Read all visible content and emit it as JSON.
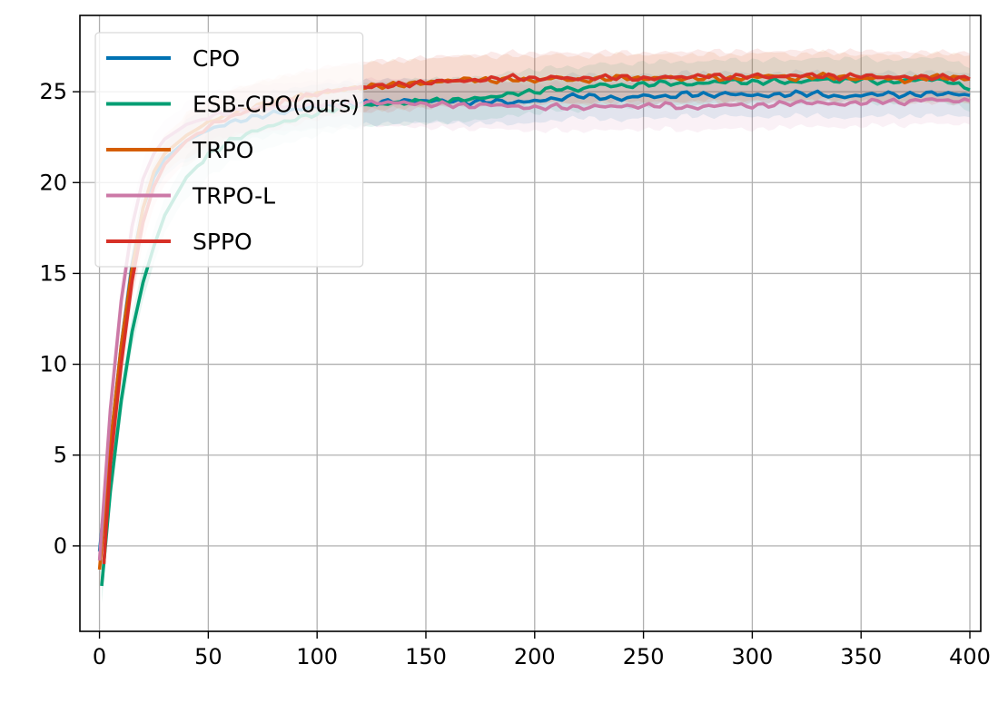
{
  "chart_data": {
    "type": "line",
    "title": "",
    "xlabel": "",
    "ylabel": "",
    "xlim": [
      -9,
      405
    ],
    "ylim": [
      -4.7,
      29.2
    ],
    "xticks": [
      0,
      50,
      100,
      150,
      200,
      250,
      300,
      350,
      400
    ],
    "yticks": [
      0,
      5,
      10,
      15,
      20,
      25
    ],
    "grid": true,
    "legend_position": "top-left",
    "series": [
      {
        "name": "CPO",
        "color": "#0072b2",
        "band": 1.2,
        "x": [
          0,
          5,
          10,
          15,
          20,
          25,
          30,
          40,
          50,
          60,
          75,
          90,
          100,
          110,
          125,
          140,
          150,
          160,
          170,
          180,
          190,
          200,
          210,
          220,
          230,
          240,
          250,
          260,
          270,
          280,
          290,
          300,
          310,
          320,
          330,
          340,
          350,
          360,
          370,
          380,
          390,
          400
        ],
        "values": [
          -0.3,
          5.5,
          11.0,
          15.5,
          18.6,
          20.3,
          21.3,
          22.3,
          22.9,
          23.3,
          23.7,
          24.0,
          24.2,
          24.3,
          24.4,
          24.5,
          24.5,
          24.5,
          24.4,
          24.5,
          24.4,
          24.5,
          24.6,
          24.8,
          24.7,
          24.6,
          24.8,
          24.7,
          24.9,
          24.8,
          24.9,
          24.8,
          24.8,
          24.9,
          24.9,
          24.7,
          24.8,
          24.9,
          24.8,
          24.9,
          24.9,
          24.8
        ]
      },
      {
        "name": "ESB-CPO(ours)",
        "color": "#009e73",
        "band": 1.2,
        "x": [
          1,
          5,
          10,
          15,
          20,
          25,
          30,
          40,
          50,
          60,
          75,
          90,
          100,
          110,
          125,
          140,
          150,
          160,
          170,
          180,
          190,
          200,
          210,
          220,
          230,
          240,
          250,
          260,
          270,
          280,
          290,
          300,
          310,
          320,
          330,
          340,
          350,
          360,
          370,
          380,
          390,
          400
        ],
        "values": [
          -2.2,
          3.0,
          8.0,
          11.8,
          14.5,
          16.5,
          18.2,
          20.3,
          21.5,
          22.3,
          23.0,
          23.5,
          23.8,
          24.1,
          24.3,
          24.4,
          24.5,
          24.5,
          24.6,
          24.7,
          24.9,
          25.0,
          25.2,
          25.1,
          25.4,
          25.3,
          25.4,
          25.5,
          25.4,
          25.5,
          25.6,
          25.5,
          25.6,
          25.5,
          25.7,
          25.6,
          25.7,
          25.5,
          25.6,
          25.7,
          25.6,
          25.1
        ]
      },
      {
        "name": "TRPO",
        "color": "#d55e00",
        "band": 1.3,
        "x": [
          0,
          5,
          10,
          15,
          20,
          25,
          30,
          40,
          50,
          60,
          75,
          90,
          100,
          110,
          125,
          140,
          150,
          160,
          170,
          180,
          190,
          200,
          210,
          220,
          230,
          240,
          250,
          260,
          270,
          280,
          290,
          300,
          310,
          320,
          330,
          340,
          350,
          360,
          370,
          380,
          390,
          400
        ],
        "values": [
          -1.3,
          5.5,
          11.0,
          15.3,
          18.6,
          20.6,
          21.6,
          22.6,
          23.3,
          23.8,
          24.3,
          24.7,
          24.9,
          25.1,
          25.3,
          25.4,
          25.5,
          25.6,
          25.7,
          25.6,
          25.7,
          25.6,
          25.8,
          25.6,
          25.7,
          25.8,
          25.7,
          25.8,
          25.7,
          25.8,
          25.7,
          25.8,
          25.9,
          25.7,
          25.9,
          25.8,
          25.7,
          25.8,
          25.6,
          25.8,
          25.8,
          25.7
        ]
      },
      {
        "name": "TRPO-L",
        "color": "#cc79a7",
        "band": 1.3,
        "x": [
          0,
          5,
          10,
          15,
          20,
          25,
          30,
          40,
          50,
          60,
          75,
          90,
          100,
          110,
          125,
          140,
          150,
          160,
          170,
          180,
          190,
          200,
          210,
          220,
          230,
          240,
          250,
          260,
          270,
          280,
          290,
          300,
          310,
          320,
          330,
          340,
          350,
          360,
          370,
          380,
          390,
          400
        ],
        "values": [
          -0.8,
          7.5,
          13.5,
          17.6,
          20.2,
          21.6,
          22.4,
          23.2,
          23.6,
          23.9,
          24.1,
          24.2,
          24.3,
          24.3,
          24.4,
          24.4,
          24.3,
          24.3,
          24.2,
          24.3,
          24.2,
          24.1,
          24.2,
          24.1,
          24.2,
          24.2,
          24.2,
          24.3,
          24.1,
          24.2,
          24.3,
          24.2,
          24.3,
          24.4,
          24.4,
          24.3,
          24.4,
          24.5,
          24.4,
          24.6,
          24.5,
          24.5
        ]
      },
      {
        "name": "SPPO",
        "color": "#d73027",
        "band": 1.4,
        "x": [
          2,
          5,
          10,
          15,
          20,
          25,
          30,
          40,
          50,
          60,
          75,
          90,
          100,
          110,
          125,
          140,
          150,
          160,
          170,
          180,
          190,
          200,
          210,
          220,
          230,
          240,
          250,
          260,
          270,
          280,
          290,
          300,
          310,
          320,
          330,
          340,
          350,
          360,
          370,
          380,
          390,
          400
        ],
        "values": [
          -1.0,
          4.5,
          10.0,
          14.6,
          17.8,
          19.8,
          21.0,
          22.3,
          23.1,
          23.6,
          24.2,
          24.6,
          24.9,
          25.1,
          25.3,
          25.4,
          25.5,
          25.6,
          25.6,
          25.7,
          25.8,
          25.7,
          25.8,
          25.7,
          25.8,
          25.8,
          25.7,
          25.8,
          25.8,
          25.9,
          25.8,
          25.9,
          25.8,
          25.9,
          25.9,
          25.8,
          25.9,
          25.8,
          25.8,
          25.8,
          25.8,
          25.7
        ]
      }
    ]
  }
}
